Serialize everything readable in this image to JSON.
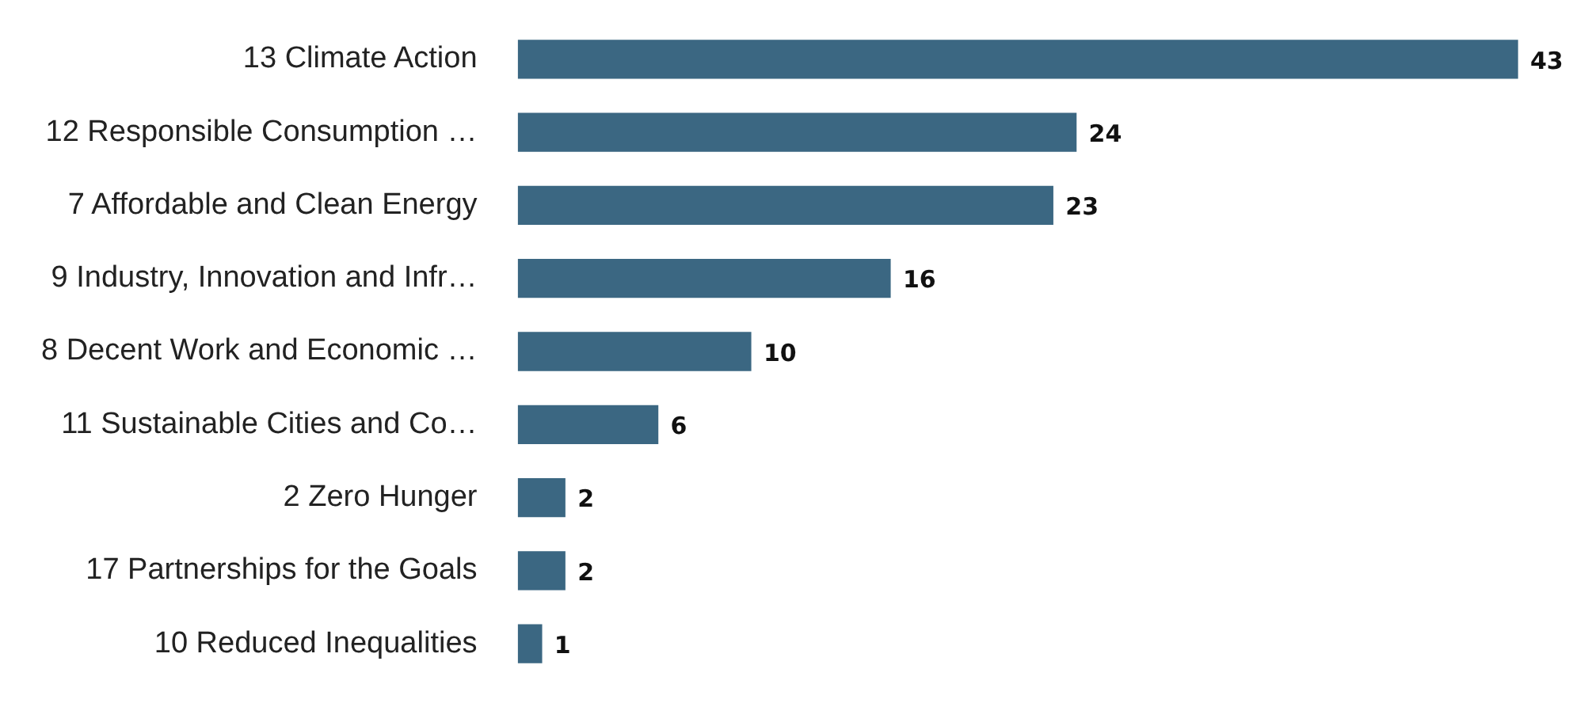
{
  "chart_data": {
    "type": "bar",
    "orientation": "horizontal",
    "categories": [
      "13 Climate Action",
      "12 Responsible Consumption …",
      "7 Affordable and Clean Energy",
      "9 Industry, Innovation and Infr…",
      "8 Decent Work and Economic …",
      "11 Sustainable Cities and Co…",
      "2 Zero Hunger",
      "17 Partnerships for the Goals",
      "10 Reduced Inequalities"
    ],
    "values": [
      43,
      24,
      23,
      16,
      10,
      6,
      2,
      2,
      1
    ],
    "color": "#3b6782",
    "data_labels": true,
    "grid": false,
    "legend": false
  }
}
